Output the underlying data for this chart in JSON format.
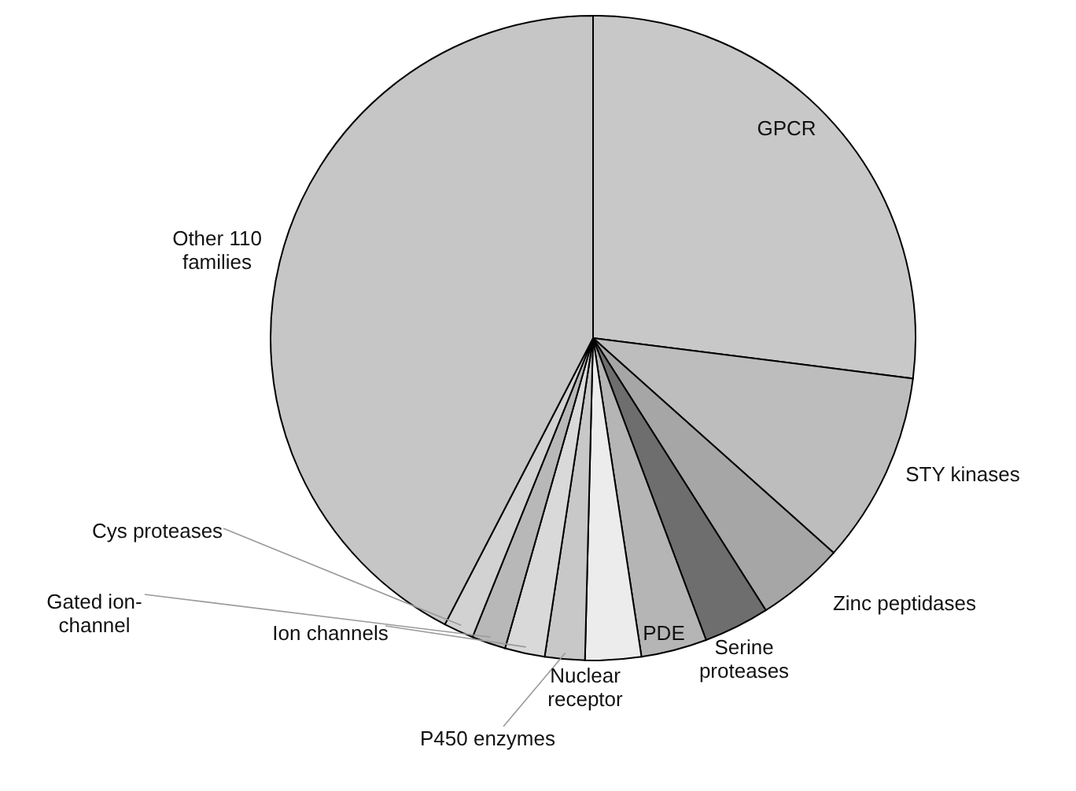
{
  "chart_data": {
    "type": "pie",
    "categories": [
      "GPCR",
      "STY kinases",
      "Zinc peptidases",
      "Serine\nproteases",
      "PDE",
      "Nuclear\nreceptor",
      "P450 enzymes",
      "Ion channels",
      "Gated ion-\nchannel",
      "Cys proteases",
      "Other 110\nfamilies"
    ],
    "values": [
      27,
      9.6,
      4.4,
      3.3,
      3.3,
      2.8,
      2,
      2,
      1.7,
      1.5,
      42.4
    ],
    "colors": [
      "#c8c8c8",
      "#bdbdbd",
      "#a6a6a6",
      "#6e6e6e",
      "#b5b5b5",
      "#ececec",
      "#c8c8c8",
      "#d9d9d9",
      "#b8b8b8",
      "#d2d2d2",
      "#c6c6c6"
    ]
  }
}
